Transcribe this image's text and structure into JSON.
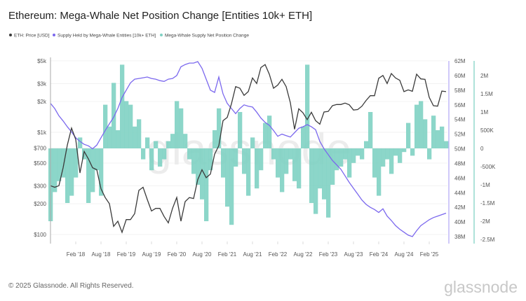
{
  "title": "Ethereum: Mega-Whale Net Position Change [Entities 10k+ ETH]",
  "footer": "© 2025 Glassnode. All Rights Reserved.",
  "logo": "glassnode",
  "watermark": "glassnode",
  "colors": {
    "price": "#3a3a3a",
    "supply": "#7b68ee",
    "net": "#7fd1c3",
    "net_axis": "#5cc6b3"
  },
  "chart_data": {
    "type": "line",
    "title": "Ethereum: Mega-Whale Net Position Change [Entities 10k+ ETH]",
    "x_start": "2017-08",
    "x_end": "2025-06",
    "x_interval": "monthly",
    "x_tick_labels": [
      "Feb '18",
      "Aug '18",
      "Feb '19",
      "Aug '19",
      "Feb '20",
      "Aug '20",
      "Feb '21",
      "Aug '21",
      "Feb '22",
      "Aug '22",
      "Feb '23",
      "Aug '23",
      "Feb '24",
      "Aug '24",
      "Feb '25"
    ],
    "grid": true,
    "legend_placement": "top-left",
    "axes": {
      "price": {
        "scale": "log",
        "range": [
          90,
          5000
        ],
        "tick_labels": [
          "$5k",
          "$3k",
          "$2k",
          "$1k",
          "$700",
          "$500",
          "$300",
          "$200",
          "$100"
        ],
        "tick_values": [
          5000,
          3000,
          2000,
          1000,
          700,
          500,
          300,
          200,
          100
        ]
      },
      "supply": {
        "scale": "linear",
        "range": [
          38,
          62
        ],
        "unit": "M",
        "tick_labels": [
          "62M",
          "60M",
          "58M",
          "56M",
          "54M",
          "52M",
          "50M",
          "48M",
          "46M",
          "44M",
          "42M",
          "40M",
          "38M"
        ]
      },
      "net": {
        "scale": "linear",
        "range": [
          -2500,
          2400
        ],
        "unit": "K",
        "tick_labels": [
          "2M",
          "1.5M",
          "1M",
          "500K",
          "0",
          "-500K",
          "-1M",
          "-1.5M",
          "-2M",
          "-2.5M"
        ],
        "tick_values": [
          2000,
          1500,
          1000,
          500,
          0,
          -500,
          -1000,
          -1500,
          -2000,
          -2500
        ]
      }
    },
    "series": [
      {
        "name": "ETH: Price [USD]",
        "type": "line",
        "axis": "price",
        "color": "#3a3a3a",
        "values": [
          300,
          290,
          300,
          450,
          750,
          1100,
          850,
          400,
          650,
          550,
          450,
          430,
          280,
          230,
          200,
          120,
          135,
          105,
          140,
          140,
          160,
          270,
          290,
          220,
          170,
          180,
          180,
          150,
          130,
          180,
          230,
          135,
          210,
          230,
          225,
          345,
          430,
          360,
          390,
          610,
          740,
          1300,
          1400,
          1900,
          2800,
          2700,
          2300,
          2500,
          3400,
          3000,
          4300,
          4600,
          3700,
          2700,
          2900,
          3300,
          2800,
          1950,
          1070,
          1700,
          1550,
          1330,
          1570,
          1300,
          1200,
          1580,
          1600,
          1820,
          1870,
          1870,
          1930,
          1860,
          1650,
          1670,
          1800,
          2050,
          2280,
          2280,
          3380,
          3600,
          3000,
          3760,
          3400,
          3230,
          2500,
          2600,
          2520,
          3700,
          3330,
          3300,
          2200,
          1820,
          1800,
          2530,
          2500
        ]
      },
      {
        "name": "Supply Held by Mega-Whale Entities [10k+ ETH]",
        "type": "line",
        "axis": "supply",
        "color": "#7b68ee",
        "values": [
          56.2,
          55.5,
          54.5,
          53.8,
          53.0,
          52.3,
          51.5,
          51.0,
          50.6,
          50.4,
          50.0,
          50.5,
          51.5,
          52.5,
          53.4,
          54.3,
          55.5,
          57.0,
          58.0,
          59.0,
          59.5,
          59.6,
          59.7,
          59.8,
          59.6,
          59.5,
          59.3,
          59.2,
          59.5,
          59.6,
          60.0,
          61.2,
          61.5,
          61.7,
          61.7,
          61.9,
          61.0,
          59.5,
          58.0,
          57.7,
          59.8,
          57.5,
          56.2,
          55.5,
          54.8,
          55.5,
          56.0,
          55.8,
          55.7,
          55.0,
          54.2,
          53.6,
          53.2,
          52.5,
          51.7,
          52.0,
          51.8,
          51.6,
          52.2,
          52.8,
          53.0,
          53.3,
          53.0,
          52.6,
          51.0,
          50.0,
          49.2,
          48.4,
          47.8,
          47.2,
          46.3,
          45.4,
          44.6,
          43.8,
          43.0,
          42.4,
          42.0,
          41.7,
          41.3,
          41.8,
          40.8,
          40.2,
          39.5,
          39.0,
          38.6,
          38.2,
          38.0,
          38.8,
          39.5,
          39.9,
          40.3,
          40.6,
          40.8,
          41.0,
          41.2
        ]
      },
      {
        "name": "Mega-Whale Supply Net Position Change",
        "type": "bar",
        "axis": "net",
        "color": "#7fd1c3",
        "values": [
          -2000,
          -1200,
          -900,
          -800,
          -1500,
          -1300,
          -800,
          300,
          -300,
          -1500,
          -1200,
          -600,
          -1300,
          1200,
          600,
          1800,
          500,
          2300,
          1300,
          1200,
          600,
          800,
          -300,
          300,
          -600,
          200,
          -500,
          -300,
          200,
          400,
          1300,
          1100,
          400,
          -300,
          -700,
          -1000,
          -1400,
          -2000,
          -600,
          500,
          1100,
          -800,
          -1600,
          -2100,
          -500,
          1000,
          -700,
          -1300,
          300,
          -1100,
          -600,
          700,
          900,
          -300,
          -800,
          -1200,
          -700,
          -300,
          -900,
          -1100,
          600,
          2300,
          -1500,
          -1800,
          -1100,
          -1400,
          -1900,
          -1000,
          -600,
          -500,
          -300,
          -800,
          -400,
          -200,
          -300,
          200,
          1000,
          -800,
          -1300,
          -500,
          -300,
          -700,
          -200,
          -400,
          -100,
          700,
          -200,
          1200,
          1300,
          800,
          -300,
          900,
          500,
          600,
          200
        ]
      }
    ]
  }
}
